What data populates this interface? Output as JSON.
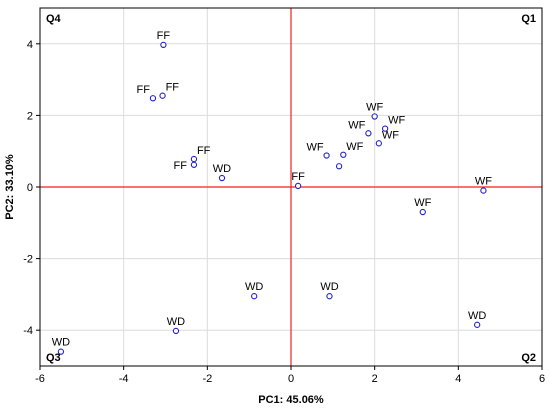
{
  "chart_data": {
    "type": "scatter",
    "xlabel": "PC1: 45.06%",
    "ylabel": "PC2: 33.10%",
    "xlim": [
      -6,
      6
    ],
    "ylim": [
      -5,
      5
    ],
    "xticks": [
      -6,
      -4,
      -2,
      0,
      2,
      4,
      6
    ],
    "yticks": [
      -4,
      -2,
      0,
      2,
      4
    ],
    "grid": true,
    "reference_lines": {
      "x": 0,
      "y": 0,
      "color": "#ee2222"
    },
    "marker_color": "#2222cc",
    "quadrants": [
      {
        "label": "Q4",
        "position": "top-left"
      },
      {
        "label": "Q1",
        "position": "top-right"
      },
      {
        "label": "Q3",
        "position": "bottom-left"
      },
      {
        "label": "Q2",
        "position": "bottom-right"
      }
    ],
    "points": [
      {
        "label": "FF",
        "x": -3.05,
        "y": 3.97,
        "label_pos": "above"
      },
      {
        "label": "FF",
        "x": -3.3,
        "y": 2.48,
        "label_pos": "above-left"
      },
      {
        "label": "FF",
        "x": -3.07,
        "y": 2.55,
        "label_pos": "above-right"
      },
      {
        "label": "FF",
        "x": -2.32,
        "y": 0.78,
        "label_pos": "above-right"
      },
      {
        "label": "FF",
        "x": -2.32,
        "y": 0.62,
        "label_pos": "left"
      },
      {
        "label": "WD",
        "x": -1.65,
        "y": 0.25,
        "label_pos": "above"
      },
      {
        "label": "FF",
        "x": 0.17,
        "y": 0.03,
        "label_pos": "above"
      },
      {
        "label": "WF",
        "x": 2.0,
        "y": 1.97,
        "label_pos": "above"
      },
      {
        "label": "WF",
        "x": 1.85,
        "y": 1.5,
        "label_pos": "above-left"
      },
      {
        "label": "WF",
        "x": 2.25,
        "y": 1.63,
        "label_pos": "above-right"
      },
      {
        "label": "WF",
        "x": 2.1,
        "y": 1.22,
        "label_pos": "above-right"
      },
      {
        "label": "WF",
        "x": 0.85,
        "y": 0.88,
        "label_pos": "above-left"
      },
      {
        "label": "WF",
        "x": 1.25,
        "y": 0.9,
        "label_pos": "above-right"
      },
      {
        "label": "WF",
        "x": 1.15,
        "y": 0.58,
        "label_pos": "none"
      },
      {
        "label": "WF",
        "x": 4.6,
        "y": -0.1,
        "label_pos": "above"
      },
      {
        "label": "WF",
        "x": 3.15,
        "y": -0.7,
        "label_pos": "above"
      },
      {
        "label": "WD",
        "x": -0.88,
        "y": -3.05,
        "label_pos": "above"
      },
      {
        "label": "WD",
        "x": 0.92,
        "y": -3.05,
        "label_pos": "above"
      },
      {
        "label": "WD",
        "x": -2.75,
        "y": -4.02,
        "label_pos": "above"
      },
      {
        "label": "WD",
        "x": 4.45,
        "y": -3.85,
        "label_pos": "above"
      },
      {
        "label": "WD",
        "x": -5.5,
        "y": -4.6,
        "label_pos": "above"
      }
    ]
  }
}
